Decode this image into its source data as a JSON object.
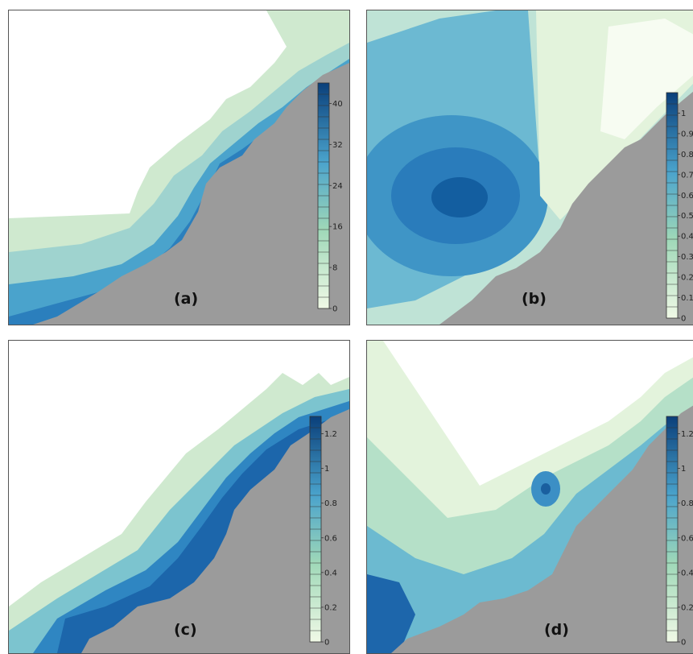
{
  "figure": {
    "panels": [
      {
        "id": "a",
        "label": "(a)",
        "colorbar": {
          "min": 0,
          "max": 44,
          "tick_labels": [
            "0",
            "8",
            "16",
            "24",
            "32",
            "40"
          ],
          "tick_values": [
            0,
            8,
            16,
            24,
            32,
            40
          ]
        }
      },
      {
        "id": "b",
        "label": "(b)",
        "colorbar": {
          "min": 0,
          "max": 1.1,
          "tick_labels": [
            "0",
            "0.1",
            "0.2",
            "0.3",
            "0.4",
            "0.5",
            "0.6",
            "0.7",
            "0.8",
            "0.9",
            "1"
          ],
          "tick_values": [
            0,
            0.1,
            0.2,
            0.3,
            0.4,
            0.5,
            0.6,
            0.7,
            0.8,
            0.9,
            1
          ]
        }
      },
      {
        "id": "c",
        "label": "(c)",
        "colorbar": {
          "min": 0,
          "max": 1.3,
          "tick_labels": [
            "0",
            "0.2",
            "0.4",
            "0.6",
            "0.8",
            "1",
            "1.2"
          ],
          "tick_values": [
            0,
            0.2,
            0.4,
            0.6,
            0.8,
            1,
            1.2
          ]
        }
      },
      {
        "id": "d",
        "label": "(d)",
        "colorbar": {
          "min": 0,
          "max": 1.3,
          "tick_labels": [
            "0",
            "0.2",
            "0.4",
            "0.6",
            "0.8",
            "1",
            "1.2"
          ],
          "tick_values": [
            0,
            0.2,
            0.4,
            0.6,
            0.8,
            1,
            1.2
          ]
        }
      }
    ],
    "colors": {
      "low": "#f0f9e6",
      "high": "#0a3f7a",
      "land": "#9b9b9b",
      "frame": "#555555"
    }
  }
}
